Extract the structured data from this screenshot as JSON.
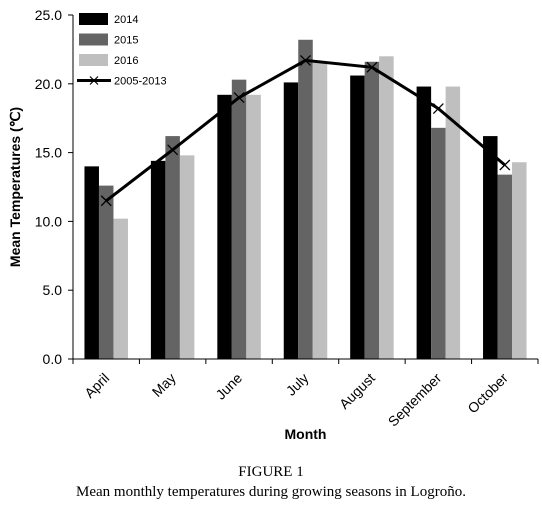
{
  "chart_data": {
    "type": "bar",
    "xlabel": "Month",
    "ylabel": "Mean Temperatures (℃)",
    "ylim": [
      0,
      25
    ],
    "yticks": [
      "0.0",
      "5.0",
      "10.0",
      "15.0",
      "20.0",
      "25.0"
    ],
    "categories": [
      "April",
      "May",
      "June",
      "July",
      "August",
      "September",
      "October"
    ],
    "series": [
      {
        "name": "2014",
        "type": "bar",
        "color": "#000000",
        "values": [
          14.0,
          14.4,
          19.2,
          20.1,
          20.6,
          19.8,
          16.2
        ]
      },
      {
        "name": "2015",
        "type": "bar",
        "color": "#646464",
        "values": [
          12.6,
          16.2,
          20.3,
          23.2,
          21.6,
          16.8,
          13.4
        ]
      },
      {
        "name": "2016",
        "type": "bar",
        "color": "#bfbfbf",
        "values": [
          10.2,
          14.8,
          19.2,
          21.6,
          22.0,
          19.8,
          14.3
        ]
      },
      {
        "name": "2005-2013",
        "type": "line",
        "marker": "x",
        "color": "#000000",
        "values": [
          11.5,
          15.2,
          19.0,
          21.7,
          21.2,
          18.2,
          14.1
        ]
      }
    ],
    "legend_position": "top-left",
    "grid": false
  },
  "caption": {
    "title": "FIGURE 1",
    "text": "Mean monthly temperatures during growing seasons in Logroño."
  }
}
